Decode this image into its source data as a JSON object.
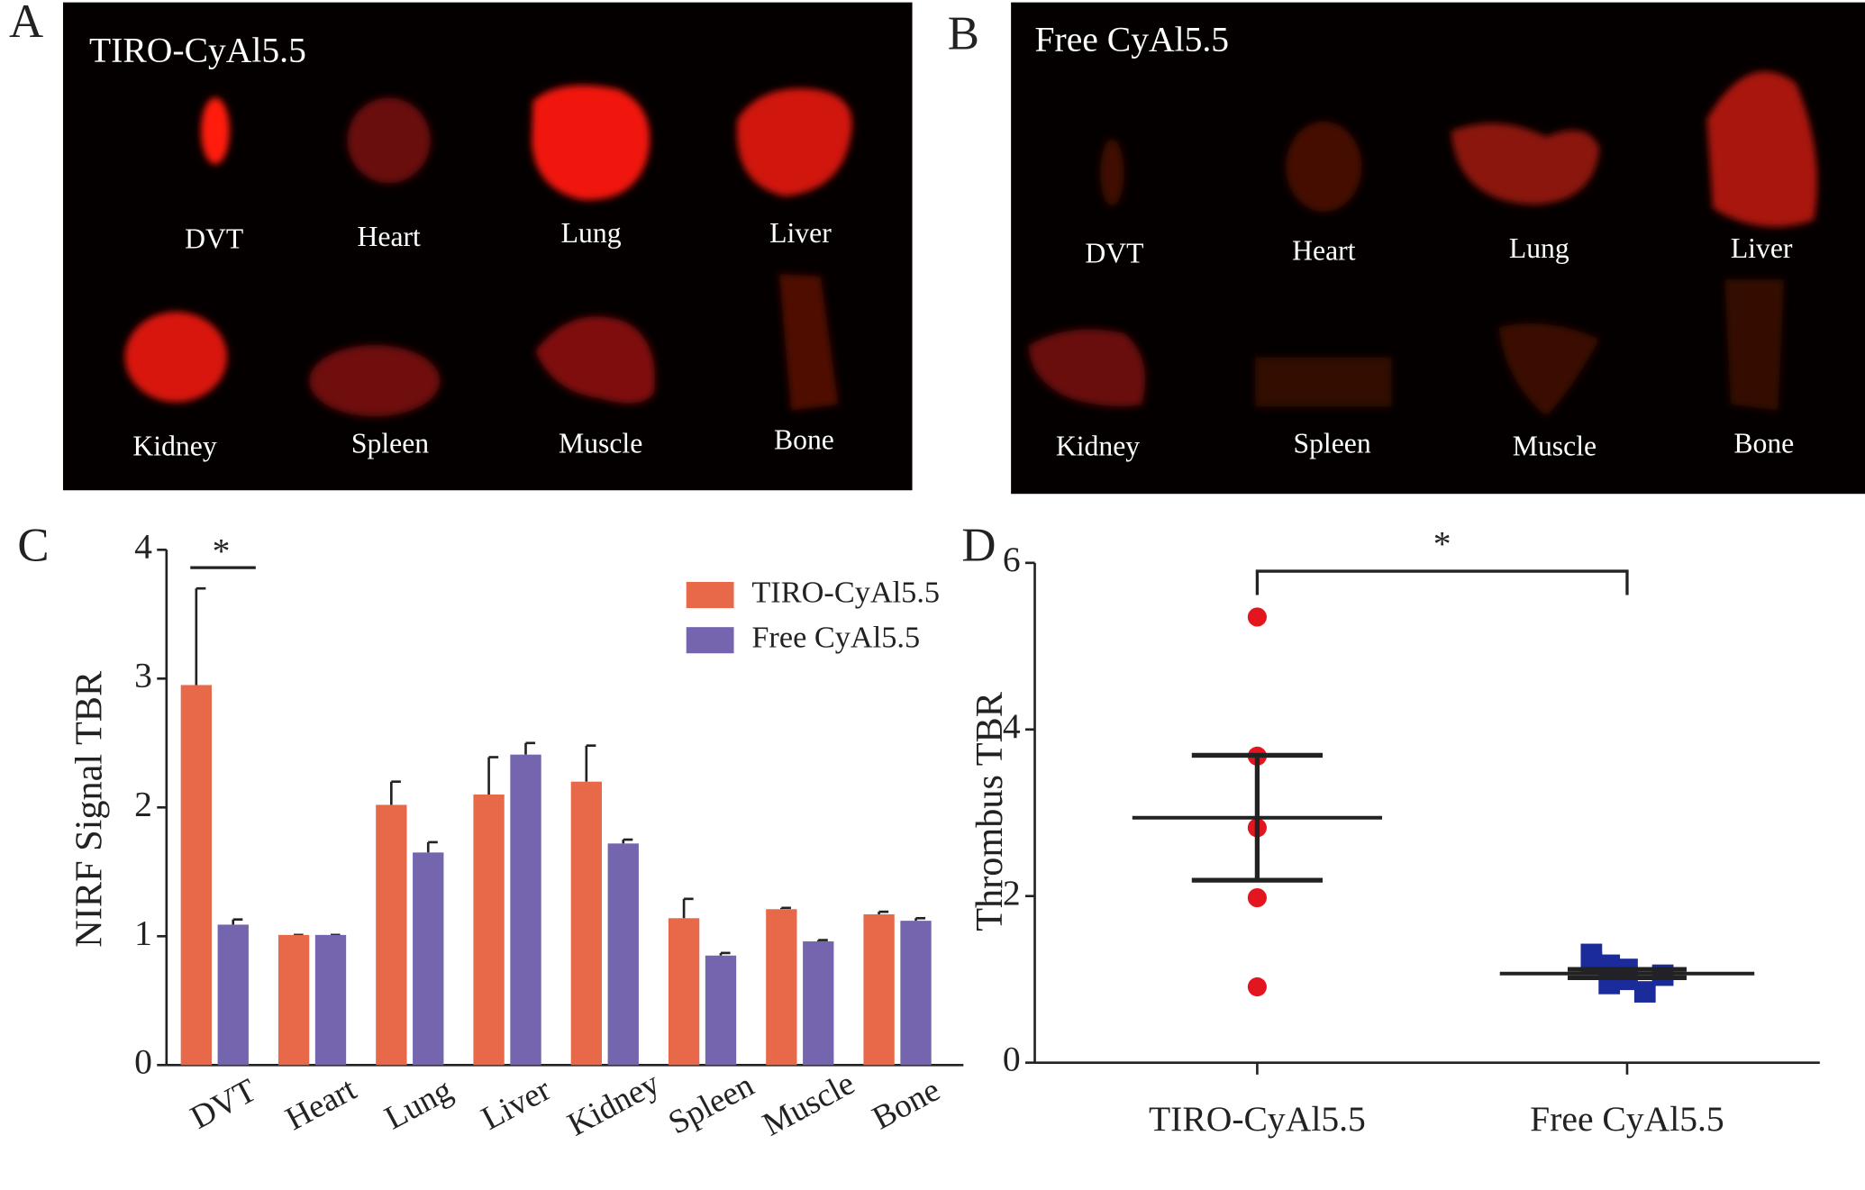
{
  "panels": [
    {
      "label": "A",
      "title": "TIRO-CyAl5.5",
      "organs": [
        "DVT",
        "Heart",
        "Lung",
        "Liver",
        "Kidney",
        "Spleen",
        "Muscle",
        "Bone"
      ]
    },
    {
      "label": "B",
      "title": "Free CyAl5.5",
      "organs": [
        "DVT",
        "Heart",
        "Lung",
        "Liver",
        "Kidney",
        "Spleen",
        "Muscle",
        "Bone"
      ]
    }
  ],
  "chart_data": [
    {
      "type": "bar",
      "panel_label": "C",
      "ylabel": "NIRF Signal TBR",
      "categories": [
        "DVT",
        "Heart",
        "Lung",
        "Liver",
        "Kidney",
        "Spleen",
        "Muscle",
        "Bone"
      ],
      "series": [
        {
          "name": "TIRO-CyAl5.5",
          "color": "#e8694a",
          "values": [
            2.95,
            1.01,
            2.02,
            2.1,
            2.2,
            1.14,
            1.21,
            1.17
          ],
          "errors": [
            0.75,
            0,
            0.18,
            0.29,
            0.28,
            0.15,
            0.01,
            0.02
          ]
        },
        {
          "name": "Free CyAl5.5",
          "color": "#7465ae",
          "values": [
            1.09,
            1.01,
            1.65,
            2.41,
            1.72,
            0.85,
            0.96,
            1.12
          ],
          "errors": [
            0.04,
            0,
            0.08,
            0.09,
            0.03,
            0.02,
            0.01,
            0.02
          ]
        }
      ],
      "ylim": [
        0,
        4
      ],
      "yticks": [
        0,
        1,
        2,
        3,
        4
      ],
      "legend": "upper right",
      "annotation": "*"
    },
    {
      "type": "scatter",
      "panel_label": "D",
      "ylabel": "Thrombus TBR",
      "categories": [
        "TIRO-CyAl5.5",
        "Free CyAl5.5"
      ],
      "series": [
        {
          "name": "TIRO-CyAl5.5",
          "color": "#e3161f",
          "marker": "circle",
          "values": [
            5.35,
            3.68,
            2.82,
            1.98,
            0.91
          ],
          "mean": 2.94,
          "sd": 0.75
        },
        {
          "name": "Free CyAl5.5",
          "color": "#1c2b9a",
          "marker": "square",
          "values": [
            1.3,
            1.17,
            1.0,
            0.85,
            1.05,
            1.2,
            0.95,
            1.12
          ],
          "mean": 1.07,
          "sd": 0.05
        }
      ],
      "ylim": [
        0,
        6
      ],
      "yticks": [
        0,
        2,
        4,
        6
      ],
      "annotation": "*"
    }
  ]
}
